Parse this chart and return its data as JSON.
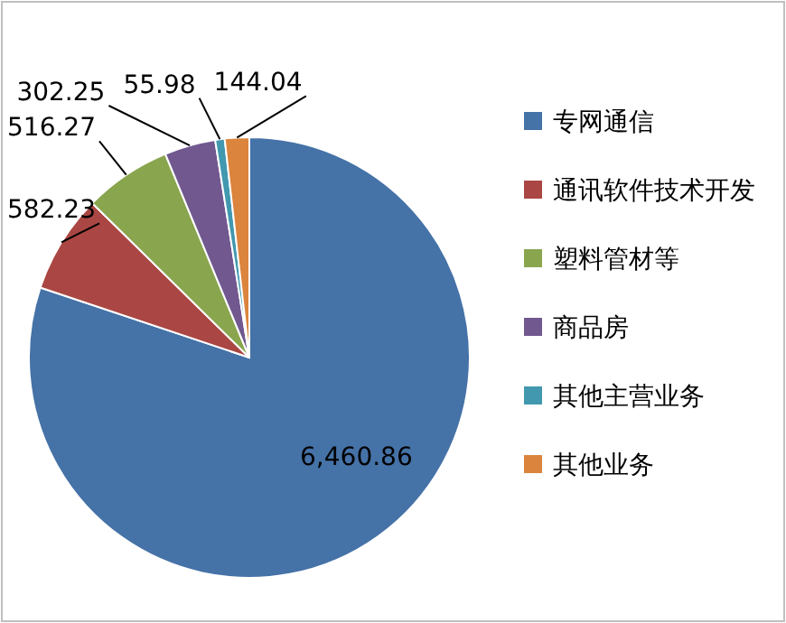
{
  "chart_data": {
    "type": "pie",
    "categories": [
      "专网通信",
      "通讯软件技术开发",
      "塑料管材等",
      "商品房",
      "其他主营业务",
      "其他业务"
    ],
    "values": [
      6460.86,
      582.23,
      516.27,
      302.25,
      55.98,
      144.04
    ],
    "colors": [
      "#4572a7",
      "#aa4643",
      "#89a54e",
      "#71588f",
      "#4198af",
      "#db843d"
    ],
    "value_labels": [
      "6,460.86",
      "582.23",
      "516.27",
      "302.25",
      "55.98",
      "144.04"
    ],
    "legend": "right"
  }
}
